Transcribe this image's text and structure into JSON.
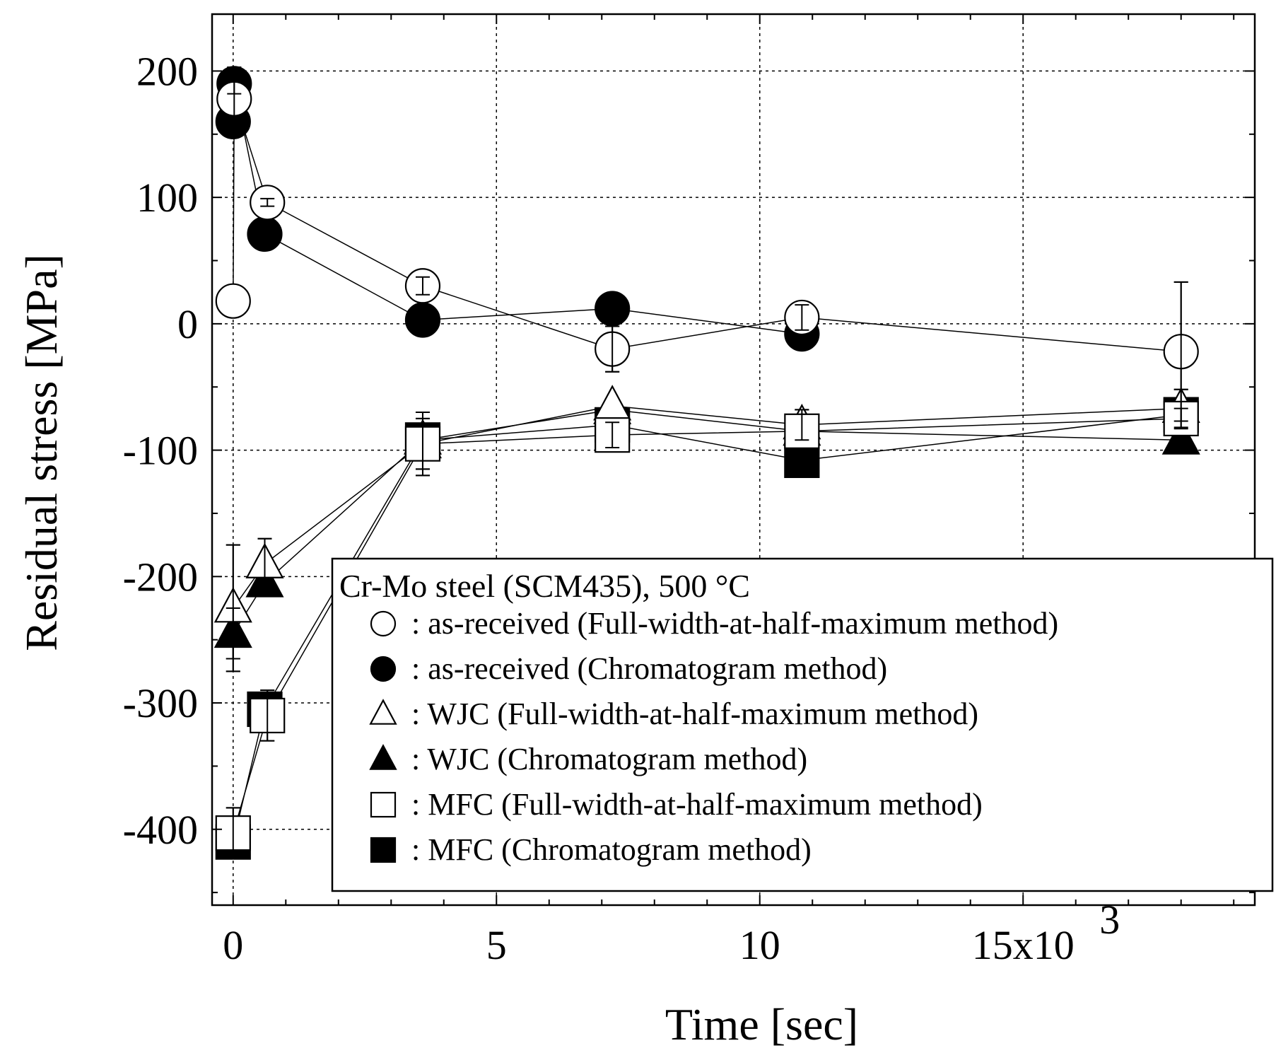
{
  "chart_data": {
    "type": "scatter",
    "title": "",
    "xlabel": "Time [sec]",
    "ylabel": "Residual stress [MPa]",
    "xlim": [
      -0.4,
      19.4
    ],
    "ylim": [
      -460,
      245
    ],
    "x_multiplier_label": "x10",
    "x_multiplier_exponent": "3",
    "xticks": [
      {
        "value": 0,
        "label": "0"
      },
      {
        "value": 5,
        "label": "5"
      },
      {
        "value": 10,
        "label": "10"
      },
      {
        "value": 15,
        "label": "15x10"
      }
    ],
    "yticks": [
      {
        "value": 200,
        "label": "200"
      },
      {
        "value": 100,
        "label": "100"
      },
      {
        "value": 0,
        "label": "0"
      },
      {
        "value": -100,
        "label": "-100"
      },
      {
        "value": -200,
        "label": "-200"
      },
      {
        "value": -300,
        "label": "-300"
      },
      {
        "value": -400,
        "label": "-400"
      }
    ],
    "grid": true,
    "legend": {
      "title": "Cr-Mo steel (SCM435), 500 °C",
      "placement": "bottom-right"
    },
    "series": [
      {
        "name": ": as-received (Full-width-at-half-maximum method)",
        "marker": "circle",
        "filled": false,
        "x": [
          0,
          0.02,
          0.65,
          3.6,
          7.2,
          10.8,
          18.0
        ],
        "y": [
          18,
          178,
          96,
          30,
          -20,
          5,
          -22
        ],
        "err": [
          null,
          25,
          3,
          7,
          18,
          10,
          55
        ]
      },
      {
        "name": ": as-received (Chromatogram method)",
        "marker": "circle",
        "filled": true,
        "x": [
          0,
          0.02,
          0.6,
          3.6,
          7.2,
          10.8
        ],
        "y": [
          160,
          190,
          71,
          3,
          12,
          -8
        ],
        "err": [
          null,
          8,
          null,
          null,
          null,
          null
        ]
      },
      {
        "name": ": WJC (Full-width-at-half-maximum method)",
        "marker": "triangle",
        "filled": false,
        "x": [
          0,
          0.6,
          3.6,
          7.2,
          10.8,
          18.0
        ],
        "y": [
          -225,
          -190,
          -95,
          -65,
          -80,
          -67
        ],
        "err": [
          50,
          20,
          20,
          null,
          12,
          15
        ]
      },
      {
        "name": ": WJC (Chromatogram method)",
        "marker": "triangle",
        "filled": true,
        "x": [
          0,
          0.6,
          3.6,
          7.2,
          10.8,
          18.0
        ],
        "y": [
          -245,
          -205,
          -92,
          -68,
          -85,
          -92
        ],
        "err": [
          20,
          null,
          null,
          null,
          null,
          null
        ]
      },
      {
        "name": ": MFC (Full-width-at-half-maximum method)",
        "marker": "square",
        "filled": false,
        "x": [
          0,
          0.65,
          3.6,
          7.2,
          10.8,
          18.0
        ],
        "y": [
          -403,
          -310,
          -95,
          -88,
          -85,
          -75
        ],
        "err": [
          20,
          20,
          25,
          10,
          null,
          8
        ]
      },
      {
        "name": ": MFC (Chromatogram method)",
        "marker": "square",
        "filled": true,
        "x": [
          0,
          0.6,
          3.6,
          7.2,
          10.8,
          18.0
        ],
        "y": [
          -410,
          -305,
          -92,
          -80,
          -108,
          -72
        ],
        "err": [
          null,
          null,
          null,
          null,
          null,
          null
        ]
      }
    ]
  }
}
